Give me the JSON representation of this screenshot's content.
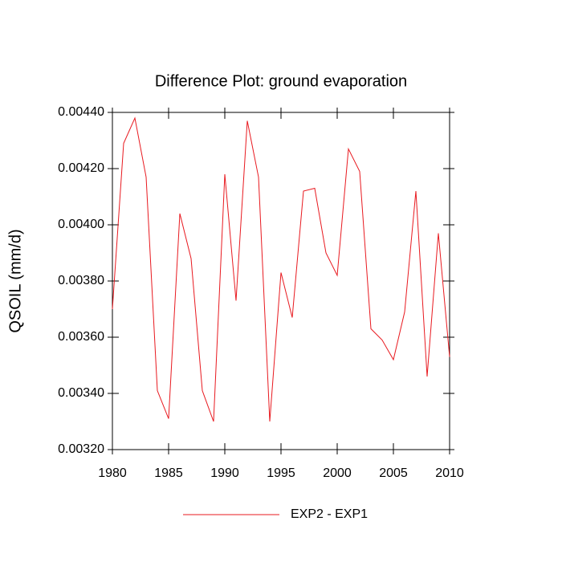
{
  "chart_data": {
    "type": "line",
    "title": "Difference Plot: ground evaporation",
    "y_label": "QSOIL  (mm/d)",
    "x": [
      1980,
      1981,
      1982,
      1983,
      1984,
      1985,
      1986,
      1987,
      1988,
      1989,
      1990,
      1991,
      1992,
      1993,
      1994,
      1995,
      1996,
      1997,
      1998,
      1999,
      2000,
      2001,
      2002,
      2003,
      2004,
      2005,
      2006,
      2007,
      2008,
      2009,
      2010
    ],
    "series": [
      {
        "name": "EXP2 - EXP1",
        "color": "#e8191f",
        "values": [
          0.0037,
          0.00429,
          0.00438,
          0.00417,
          0.00341,
          0.00331,
          0.00404,
          0.00388,
          0.00341,
          0.0033,
          0.00418,
          0.00373,
          0.00437,
          0.00417,
          0.0033,
          0.00383,
          0.00367,
          0.00412,
          0.00413,
          0.0039,
          0.00382,
          0.00427,
          0.00419,
          0.00363,
          0.00359,
          0.00352,
          0.00369,
          0.00412,
          0.00346,
          0.00397,
          0.00353
        ]
      }
    ],
    "xlim": [
      1980,
      2010
    ],
    "xticks": [
      1980,
      1985,
      1990,
      1995,
      2000,
      2005,
      2010
    ],
    "ylim": [
      0.0032,
      0.0044
    ],
    "yticks": [
      {
        "value": 0.0032,
        "label": "0.00320"
      },
      {
        "value": 0.0034,
        "label": "0.00340"
      },
      {
        "value": 0.0036,
        "label": "0.00360"
      },
      {
        "value": 0.0038,
        "label": "0.00380"
      },
      {
        "value": 0.004,
        "label": "0.00400"
      },
      {
        "value": 0.0042,
        "label": "0.00420"
      },
      {
        "value": 0.0044,
        "label": "0.00440"
      }
    ],
    "legend": "bottom"
  }
}
